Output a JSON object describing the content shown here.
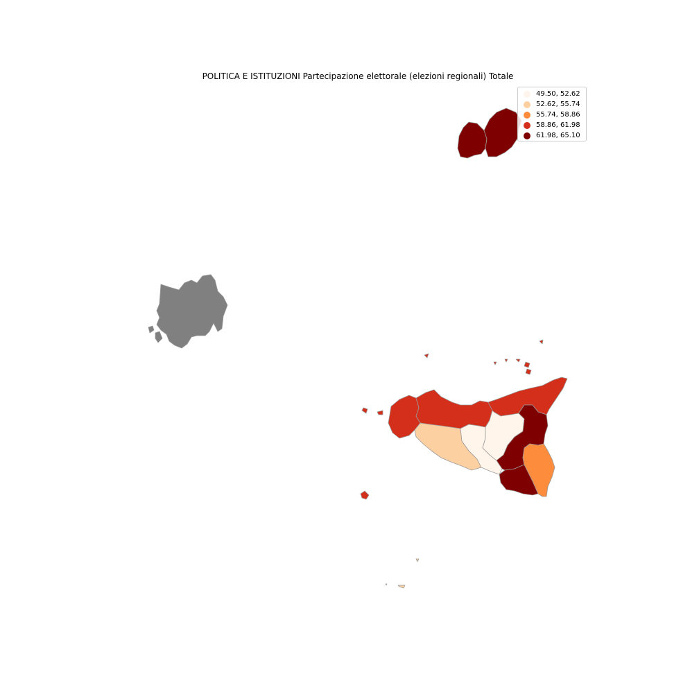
{
  "title": "POLITICA E ISTITUZIONI Partecipazione elettorale (elezioni regionali) Totale",
  "legend": {
    "placement": "top-right",
    "items": [
      {
        "label": "49.50, 52.62",
        "color": "#fff5eb"
      },
      {
        "label": "52.62, 55.74",
        "color": "#fdd0a2"
      },
      {
        "label": "55.74, 58.86",
        "color": "#fd8d3c"
      },
      {
        "label": "58.86, 61.98",
        "color": "#d42f1b"
      },
      {
        "label": "61.98, 65.10",
        "color": "#7f0000"
      }
    ]
  },
  "map": {
    "no_data_color": "#808080",
    "border_color": "#9a9a9a",
    "regions": [
      {
        "id": "molise-west",
        "class": 4
      },
      {
        "id": "molise-east",
        "class": 4
      },
      {
        "id": "sardinia-fragment",
        "class": null
      },
      {
        "id": "sicily-trapani",
        "class": 3
      },
      {
        "id": "sicily-palermo",
        "class": 3
      },
      {
        "id": "sicily-messina",
        "class": 3
      },
      {
        "id": "sicily-agrigento",
        "class": 1
      },
      {
        "id": "sicily-caltanissetta",
        "class": 0
      },
      {
        "id": "sicily-enna",
        "class": 0
      },
      {
        "id": "sicily-catania",
        "class": 4
      },
      {
        "id": "sicily-ragusa",
        "class": 4
      },
      {
        "id": "sicily-siracusa",
        "class": 2
      },
      {
        "id": "islands-aeolian",
        "class": 3
      },
      {
        "id": "islands-egadi",
        "class": 3
      },
      {
        "id": "islands-pantelleria",
        "class": 3
      },
      {
        "id": "islands-pelagie",
        "class": 1
      },
      {
        "id": "islands-ustica",
        "class": 3
      }
    ]
  }
}
